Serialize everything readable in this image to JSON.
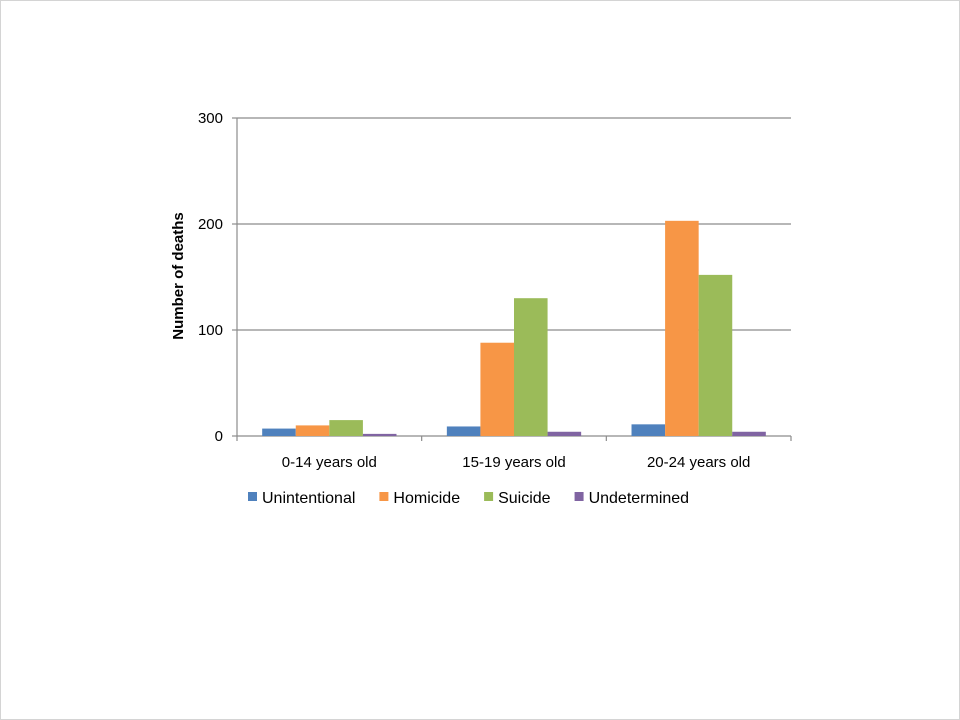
{
  "chart_data": {
    "type": "bar",
    "categories": [
      "0-14 years old",
      "15-19 years old",
      "20-24 years old"
    ],
    "series": [
      {
        "name": "Unintentional",
        "color": "#4f81bd",
        "values": [
          7,
          9,
          11
        ]
      },
      {
        "name": "Homicide",
        "color": "#f79646",
        "values": [
          10,
          88,
          203
        ]
      },
      {
        "name": "Suicide",
        "color": "#9bbb59",
        "values": [
          15,
          130,
          152
        ]
      },
      {
        "name": "Undetermined",
        "color": "#8064a2",
        "values": [
          2,
          4,
          4
        ]
      }
    ],
    "title": "",
    "xlabel": "",
    "ylabel": "Number of deaths",
    "ylim": [
      0,
      300
    ],
    "yticks": [
      0,
      100,
      200,
      300
    ],
    "grid": true,
    "legend_position": "bottom"
  }
}
